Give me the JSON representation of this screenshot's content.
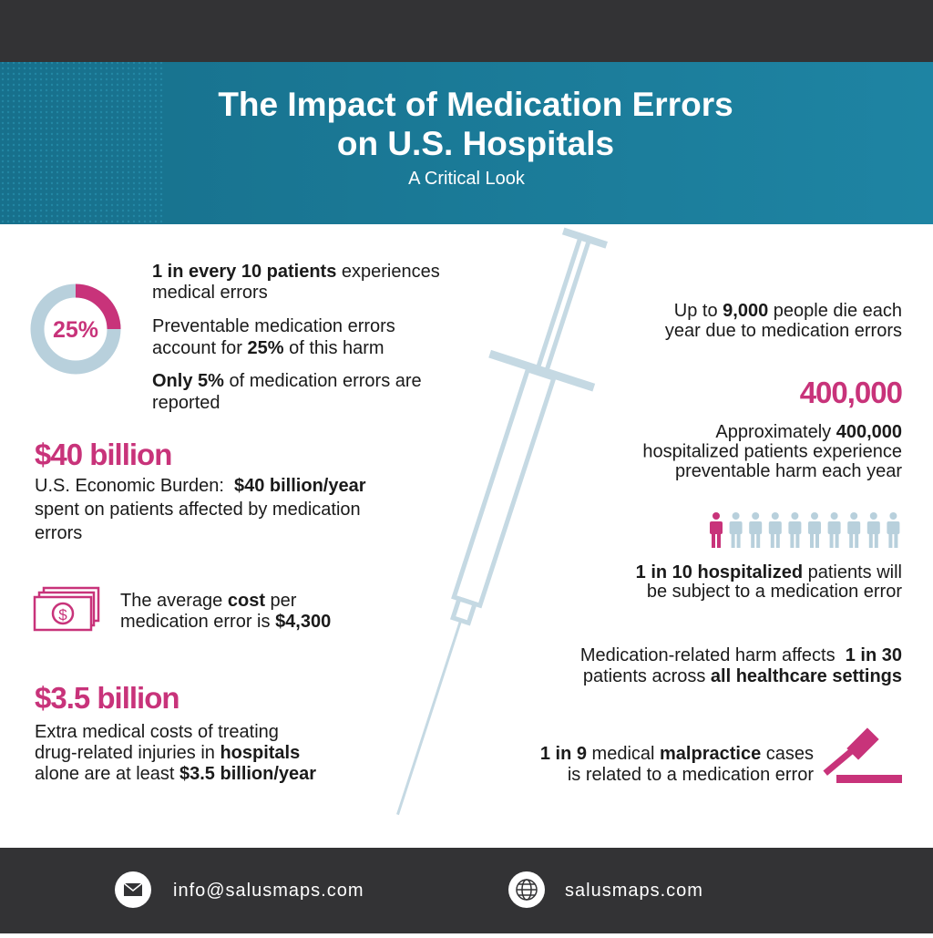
{
  "header": {
    "title_lines": [
      "The Impact of Medication Errors",
      "on U.S. Hospitals"
    ],
    "subtitle": "A Critical Look"
  },
  "donut": {
    "value": 25,
    "label": "25%",
    "color": "#c8337a",
    "track_color": "#b8d0dc"
  },
  "blocks": [
    {
      "lines": [
        [
          {
            "text": "1 in every 10 patients",
            "bold": true
          },
          {
            "text": " experiences"
          }
        ],
        [
          {
            "text": "medical errors"
          }
        ]
      ]
    },
    {
      "lines": [
        [
          {
            "text": "Preventable medication errors"
          }
        ],
        [
          {
            "text": "account for "
          },
          {
            "text": "25%",
            "bold": true
          },
          {
            "text": " of this harm"
          }
        ]
      ]
    },
    {
      "lines": [
        [
          {
            "text": "Only 5%",
            "bold": true
          },
          {
            "text": " of medication errors are"
          }
        ],
        [
          {
            "text": "reported"
          }
        ]
      ]
    },
    {
      "headline": "$40 billion",
      "lines": [
        [
          {
            "text": "U.S. Economic Burden:  "
          },
          {
            "text": "$40 billion/year",
            "bold": true
          }
        ],
        [
          {
            "text": "spent on patients affected by medication"
          }
        ],
        [
          {
            "text": "errors"
          }
        ]
      ]
    },
    {
      "lines": [
        [
          {
            "text": "The average "
          },
          {
            "text": "cost",
            "bold": true
          },
          {
            "text": " per"
          }
        ],
        [
          {
            "text": "medication error is "
          },
          {
            "text": "$4,300",
            "bold": true
          }
        ]
      ]
    },
    {
      "headline": "$3.5 billion",
      "lines": [
        [
          {
            "text": "Extra medical costs of treating"
          }
        ],
        [
          {
            "text": "drug-related injuries in "
          },
          {
            "text": "hospitals",
            "bold": true
          }
        ],
        [
          {
            "text": "alone are at least "
          },
          {
            "text": "$3.5 billion/year",
            "bold": true
          }
        ]
      ]
    },
    {
      "lines": [
        [
          {
            "text": "Up to "
          },
          {
            "text": "9,000",
            "bold": true
          },
          {
            "text": " people die each"
          }
        ],
        [
          {
            "text": "year due to medication errors"
          }
        ]
      ]
    },
    {
      "headline": "400,000",
      "lines": [
        [
          {
            "text": "Approximately "
          },
          {
            "text": "400,000",
            "bold": true
          }
        ],
        [
          {
            "text": "hospitalized patients experience"
          }
        ],
        [
          {
            "text": "preventable harm each year"
          }
        ]
      ]
    },
    {
      "lines": [
        [
          {
            "text": "1 in 10 hospitalized",
            "bold": true
          },
          {
            "text": " patients will"
          }
        ],
        [
          {
            "text": "be subject to a medication error"
          }
        ]
      ]
    },
    {
      "lines": [
        [
          {
            "text": "Medication-related harm affects  "
          },
          {
            "text": "1 in 30",
            "bold": true
          }
        ],
        [
          {
            "text": "patients across "
          },
          {
            "text": "all healthcare settings",
            "bold": true
          }
        ]
      ]
    },
    {
      "lines": [
        [
          {
            "text": "1 in 9",
            "bold": true
          },
          {
            "text": " medical "
          },
          {
            "text": "malpractice",
            "bold": true
          },
          {
            "text": " cases"
          }
        ],
        [
          {
            "text": "is related to a medication error"
          }
        ]
      ]
    }
  ],
  "footer": {
    "email": "info@salusmaps.com",
    "website": "salusmaps.com"
  }
}
